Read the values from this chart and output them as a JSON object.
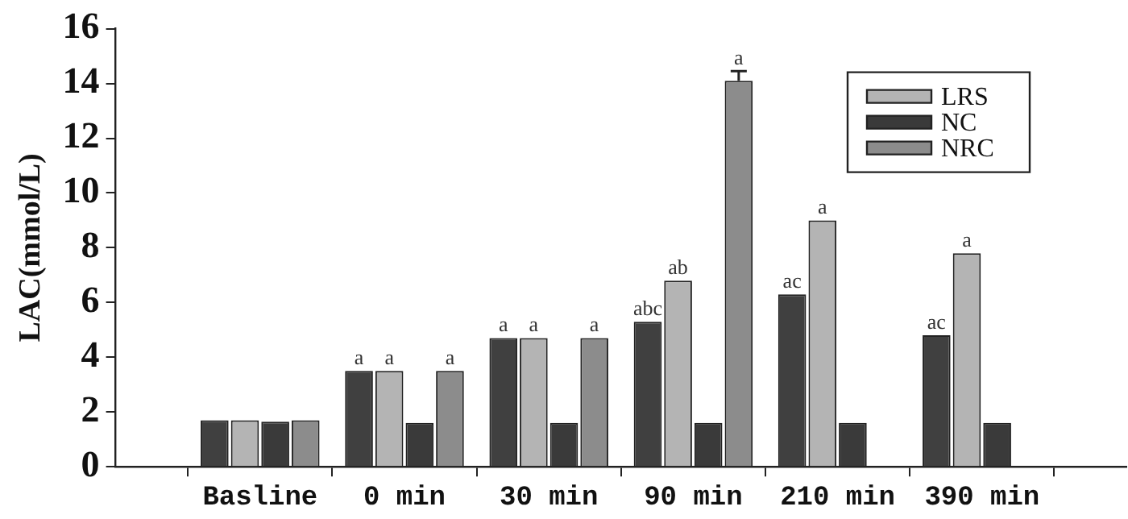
{
  "chart_data": {
    "type": "bar",
    "ylabel": "LAC(mmol/L)",
    "categories": [
      "Basline",
      "0 min",
      "30 min",
      "90 min",
      "210 min",
      "390 min"
    ],
    "series": [
      {
        "color": "#404040",
        "values": [
          1.7,
          3.5,
          4.7,
          5.3,
          6.3,
          4.8
        ],
        "value_labels": [
          null,
          "a",
          "a",
          "abc",
          "ac",
          "ac"
        ]
      },
      {
        "name": "LRS",
        "color": "#b4b4b4",
        "values": [
          1.7,
          3.5,
          4.7,
          6.8,
          9.0,
          7.8
        ],
        "value_labels": [
          null,
          "a",
          "a",
          "ab",
          "a",
          "a"
        ]
      },
      {
        "name": "NC",
        "color": "#3a3a3a",
        "values": [
          1.65,
          1.6,
          1.6,
          1.6,
          1.6,
          1.6
        ]
      },
      {
        "name": "NRC",
        "color": "#8c8c8c",
        "values": [
          1.7,
          3.5,
          4.7,
          14.1,
          null,
          null
        ],
        "value_labels": [
          null,
          "a",
          "a",
          "a",
          null,
          null
        ],
        "errors": [
          null,
          null,
          null,
          [
            14.1,
            14.45
          ],
          null,
          null
        ]
      }
    ],
    "ylim": [
      0,
      16
    ],
    "yticks": [
      0,
      2,
      4,
      6,
      8,
      10,
      12,
      14,
      16
    ],
    "grid": false,
    "legend": "top right"
  }
}
